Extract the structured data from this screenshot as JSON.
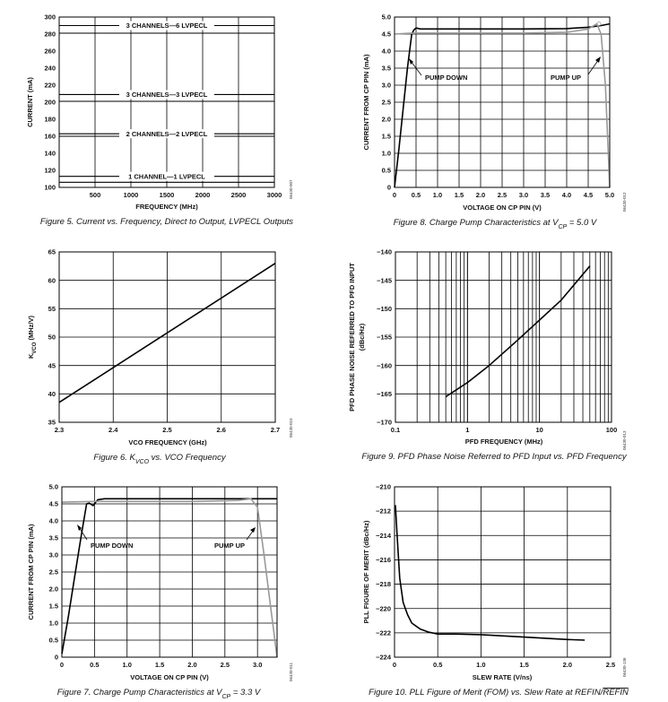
{
  "chart_data": [
    {
      "id": "fig5",
      "type": "line",
      "title": "",
      "xlabel": "FREQUENCY (MHz)",
      "ylabel": "CURRENT (mA)",
      "xlim": [
        0,
        3000
      ],
      "ylim": [
        100,
        300
      ],
      "xticks": [
        "500",
        "1000",
        "1500",
        "2000",
        "2500",
        "3000"
      ],
      "yticks": [
        "100",
        "120",
        "140",
        "160",
        "180",
        "200",
        "220",
        "240",
        "260",
        "280",
        "300"
      ],
      "grid": true,
      "series": [
        {
          "name": "3 CHANNELS—6 LVPECL",
          "x": [
            0,
            3000
          ],
          "y": [
            290,
            290
          ]
        },
        {
          "name": "",
          "x": [
            0,
            3000
          ],
          "y": [
            281,
            281
          ]
        },
        {
          "name": "3 CHANNELS—3 LVPECL",
          "x": [
            0,
            3000
          ],
          "y": [
            209,
            209
          ]
        },
        {
          "name": "",
          "x": [
            0,
            3000
          ],
          "y": [
            201,
            201
          ]
        },
        {
          "name": "2 CHANNELS—2 LVPECL",
          "x": [
            0,
            3000
          ],
          "y": [
            163,
            163
          ]
        },
        {
          "name": "",
          "x": [
            0,
            3000
          ],
          "y": [
            160,
            160
          ]
        },
        {
          "name": "1 CHANNEL—1 LVPECL",
          "x": [
            0,
            3000
          ],
          "y": [
            113,
            113
          ]
        },
        {
          "name": "",
          "x": [
            0,
            3000
          ],
          "y": [
            106,
            106
          ]
        }
      ],
      "caption": "Figure 5. Current vs. Frequency, Direct to Output, LVPECL Outputs",
      "doc_id": "06430-007"
    },
    {
      "id": "fig8",
      "type": "line",
      "title": "",
      "xlabel": "VOLTAGE ON CP PIN (V)",
      "ylabel": "CURRENT FROM CP PIN (mA)",
      "xlim": [
        0,
        5
      ],
      "ylim": [
        0,
        5
      ],
      "xticks": [
        "0",
        "0.5",
        "1.0",
        "1.5",
        "2.0",
        "2.5",
        "3.0",
        "3.5",
        "4.0",
        "4.5",
        "5.0"
      ],
      "yticks": [
        "0",
        "0.5",
        "1.0",
        "1.5",
        "2.0",
        "2.5",
        "3.0",
        "3.5",
        "4.0",
        "4.5",
        "5.0"
      ],
      "grid": true,
      "series": [
        {
          "name": "PUMP DOWN",
          "color": "#000000",
          "x": [
            0,
            0.1,
            0.2,
            0.3,
            0.4,
            0.45,
            0.5,
            0.6,
            1.0,
            2.0,
            3.0,
            4.0,
            4.5,
            4.8,
            5.0
          ],
          "y": [
            0,
            1.1,
            2.3,
            3.5,
            4.5,
            4.62,
            4.68,
            4.65,
            4.65,
            4.65,
            4.65,
            4.66,
            4.7,
            4.75,
            4.8
          ]
        },
        {
          "name": "PUMP UP",
          "color": "#999999",
          "x": [
            0,
            0.3,
            0.5,
            1.0,
            2.0,
            3.0,
            4.0,
            4.5,
            4.7,
            4.8,
            4.9,
            5.0
          ],
          "y": [
            4.5,
            4.52,
            4.53,
            4.53,
            4.53,
            4.53,
            4.55,
            4.65,
            4.8,
            4.5,
            3.0,
            0
          ]
        }
      ],
      "annotations": [
        {
          "text": "PUMP DOWN",
          "series": "PUMP DOWN"
        },
        {
          "text": "PUMP UP",
          "series": "PUMP UP"
        }
      ],
      "caption_text": "Figure 8. Charge Pump Characteristics at V",
      "caption_sub": "CP",
      "caption_rest": " = 5.0 V",
      "doc_id": "06430-012"
    },
    {
      "id": "fig6",
      "type": "line",
      "title": "",
      "xlabel": "VCO FREQUENCY (GHz)",
      "ylabel": "K",
      "ylabel_sub": "VCO",
      "ylabel_rest": " (MHz/V)",
      "xlim": [
        2.3,
        2.7
      ],
      "ylim": [
        35,
        65
      ],
      "xticks": [
        "2.3",
        "2.4",
        "2.5",
        "2.6",
        "2.7"
      ],
      "yticks": [
        "35",
        "40",
        "45",
        "50",
        "55",
        "60",
        "65"
      ],
      "grid": true,
      "series": [
        {
          "name": "K_VCO",
          "color": "#000000",
          "x": [
            2.3,
            2.7
          ],
          "y": [
            38.5,
            63
          ]
        }
      ],
      "caption_text": "Figure 6. K",
      "caption_sub": "VCO",
      "caption_rest": " vs. VCO Frequency",
      "doc_id": "06430-010"
    },
    {
      "id": "fig9",
      "type": "line",
      "title": "",
      "xlabel": "PFD FREQUENCY (MHz)",
      "ylabel": "PFD PHASE NOISE REFERRED TO PFD INPUT",
      "ylabel2": "(dBc/Hz)",
      "xscale": "log",
      "xlim": [
        0.1,
        100
      ],
      "ylim": [
        -170,
        -140
      ],
      "xticks": [
        "0.1",
        "1",
        "10",
        "100"
      ],
      "yticks": [
        "−170",
        "−165",
        "−160",
        "−155",
        "−150",
        "−145",
        "−140"
      ],
      "grid": true,
      "series": [
        {
          "name": "PFD phase noise",
          "color": "#000000",
          "x": [
            0.5,
            1,
            2,
            5,
            10,
            20,
            50
          ],
          "y": [
            -165.5,
            -163,
            -160,
            -155.5,
            -152,
            -148.5,
            -142.5
          ]
        }
      ],
      "caption": "Figure 9. PFD Phase Noise Referred to PFD Input vs. PFD Frequency",
      "doc_id": "06430-013"
    },
    {
      "id": "fig7",
      "type": "line",
      "title": "",
      "xlabel": "VOLTAGE ON CP PIN (V)",
      "ylabel": "CURRENT FROM CP PIN (mA)",
      "xlim": [
        0,
        3.3
      ],
      "ylim": [
        0,
        5
      ],
      "xticks": [
        "0",
        "0.5",
        "1.0",
        "1.5",
        "2.0",
        "2.5",
        "3.0"
      ],
      "yticks": [
        "0",
        "0.5",
        "1.0",
        "1.5",
        "2.0",
        "2.5",
        "3.0",
        "3.5",
        "4.0",
        "4.5",
        "5.0"
      ],
      "grid": true,
      "series": [
        {
          "name": "PUMP DOWN",
          "color": "#000000",
          "x": [
            0,
            0.1,
            0.2,
            0.3,
            0.38,
            0.42,
            0.48,
            0.55,
            0.65,
            1.0,
            2.0,
            3.0,
            3.3
          ],
          "y": [
            0.1,
            1.2,
            2.4,
            3.6,
            4.5,
            4.52,
            4.45,
            4.62,
            4.65,
            4.65,
            4.65,
            4.65,
            4.65
          ]
        },
        {
          "name": "PUMP UP",
          "color": "#999999",
          "x": [
            0,
            0.5,
            1.0,
            2.0,
            2.7,
            2.9,
            3.0,
            3.1,
            3.2,
            3.3
          ],
          "y": [
            4.55,
            4.57,
            4.57,
            4.57,
            4.6,
            4.65,
            4.4,
            3.0,
            1.5,
            0
          ]
        }
      ],
      "annotations": [
        {
          "text": "PUMP DOWN",
          "series": "PUMP DOWN"
        },
        {
          "text": "PUMP UP",
          "series": "PUMP UP"
        }
      ],
      "caption_text": "Figure 7. Charge Pump Characteristics at V",
      "caption_sub": "CP",
      "caption_rest": " = 3.3 V",
      "doc_id": "06430-011"
    },
    {
      "id": "fig10",
      "type": "line",
      "title": "",
      "xlabel": "SLEW RATE (V/ns)",
      "ylabel": "PLL FIGURE OF MERIT (dBc/Hz)",
      "xlim": [
        0,
        2.5
      ],
      "ylim": [
        -224,
        -210
      ],
      "xticks": [
        "0",
        "0.5",
        "1.0",
        "1.5",
        "2.0",
        "2.5"
      ],
      "yticks": [
        "−224",
        "−222",
        "−220",
        "−218",
        "−216",
        "−214",
        "−212",
        "−210"
      ],
      "grid": true,
      "series": [
        {
          "name": "FOM",
          "color": "#000000",
          "x": [
            0.01,
            0.03,
            0.06,
            0.1,
            0.15,
            0.2,
            0.3,
            0.4,
            0.5,
            0.7,
            1.0,
            1.5,
            2.0,
            2.2
          ],
          "y": [
            -211.5,
            -214,
            -217.5,
            -219.5,
            -220.5,
            -221.2,
            -221.7,
            -221.95,
            -222.1,
            -222.1,
            -222.15,
            -222.35,
            -222.55,
            -222.6
          ]
        }
      ],
      "caption_text": "Figure 10. PLL Figure of Merit (FOM) vs. Slew Rate at REFIN/",
      "caption_over": "REFIN",
      "doc_id": "06430-136"
    }
  ]
}
